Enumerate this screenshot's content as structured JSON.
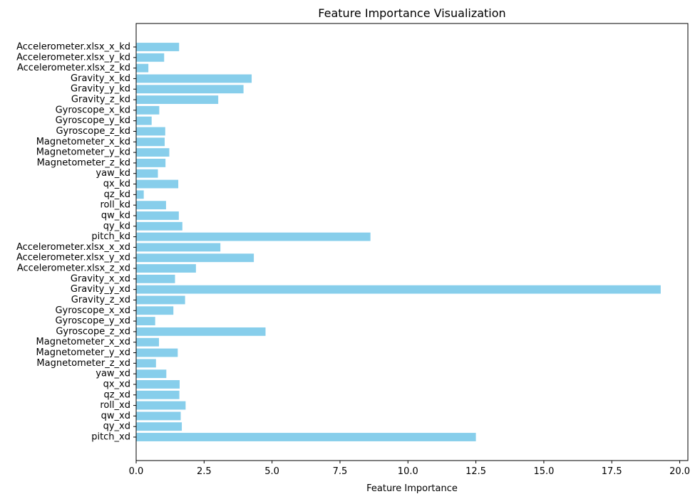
{
  "chart_data": {
    "type": "bar",
    "orientation": "horizontal",
    "title": "Feature Importance Visualization",
    "xlabel": "Feature Importance",
    "ylabel": "",
    "xlim": [
      0,
      20.3
    ],
    "xticks": [
      0,
      2.5,
      5,
      7.5,
      10,
      12.5,
      15,
      17.5,
      20
    ],
    "xtick_labels": [
      "0.0",
      "2.5",
      "5.0",
      "7.5",
      "10.0",
      "12.5",
      "15.0",
      "17.5",
      "20.0"
    ],
    "bar_color": "#87ceeb",
    "grid": false,
    "categories": [
      "Accelerometer.xlsx_x_kd",
      "Accelerometer.xlsx_y_kd",
      "Accelerometer.xlsx_z_kd",
      "Gravity_x_kd",
      "Gravity_y_kd",
      "Gravity_z_kd",
      "Gyroscope_x_kd",
      "Gyroscope_y_kd",
      "Gyroscope_z_kd",
      "Magnetometer_x_kd",
      "Magnetometer_y_kd",
      "Magnetometer_z_kd",
      "yaw_kd",
      "qx_kd",
      "qz_kd",
      "roll_kd",
      "qw_kd",
      "qy_kd",
      "pitch_kd",
      "Accelerometer.xlsx_x_xd",
      "Accelerometer.xlsx_y_xd",
      "Accelerometer.xlsx_z_xd",
      "Gravity_x_xd",
      "Gravity_y_xd",
      "Gravity_z_xd",
      "Gyroscope_x_xd",
      "Gyroscope_y_xd",
      "Gyroscope_z_xd",
      "Magnetometer_x_xd",
      "Magnetometer_y_xd",
      "Magnetometer_z_xd",
      "yaw_xd",
      "qx_xd",
      "qz_xd",
      "roll_xd",
      "qw_xd",
      "qy_xd",
      "pitch_xd"
    ],
    "values": [
      1.58,
      1.03,
      0.45,
      4.25,
      3.95,
      3.02,
      0.85,
      0.57,
      1.07,
      1.05,
      1.22,
      1.08,
      0.8,
      1.55,
      0.28,
      1.1,
      1.57,
      1.7,
      8.62,
      3.1,
      4.33,
      2.2,
      1.43,
      19.3,
      1.8,
      1.37,
      0.7,
      4.76,
      0.84,
      1.53,
      0.73,
      1.11,
      1.6,
      1.59,
      1.82,
      1.64,
      1.68,
      12.5
    ]
  }
}
